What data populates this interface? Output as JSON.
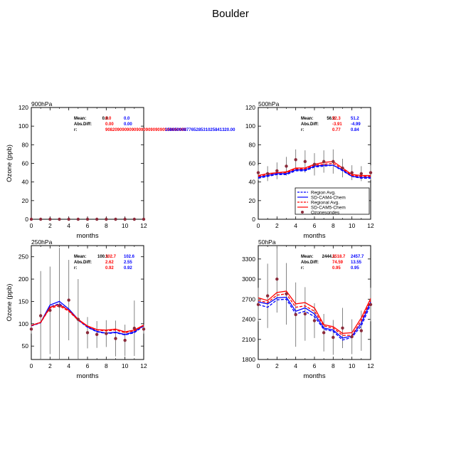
{
  "figure": {
    "title": "Boulder",
    "legend": [
      {
        "label": "Region Avg.",
        "color": "#0000ff",
        "dash": true
      },
      {
        "label": "SD-CAM4-Chem",
        "color": "#0000ff",
        "dash": false
      },
      {
        "label": "Regional Avg.",
        "color": "#ff0000",
        "dash": true
      },
      {
        "label": "SD-CAM5-Chem",
        "color": "#ff0000",
        "dash": false
      },
      {
        "label": "Ozonesondes",
        "color": "#8b2a3a",
        "marker": true
      }
    ],
    "colors": {
      "obs": "#8b2a3a",
      "cam4": "#0000ff",
      "cam5": "#ff0000",
      "errbar": "#777777"
    }
  },
  "chart_data": [
    {
      "type": "line",
      "level": "900hPa",
      "xlabel": "months",
      "ylabel": "Ozone (ppb)",
      "xlim": [
        0,
        12
      ],
      "xticks": [
        0,
        2,
        4,
        6,
        8,
        10,
        12
      ],
      "ylim": [
        0,
        120
      ],
      "yticks": [
        0,
        20,
        40,
        60,
        80,
        100,
        120
      ],
      "x": [
        0,
        1,
        2,
        3,
        4,
        5,
        6,
        7,
        8,
        9,
        10,
        11,
        12
      ],
      "obs": [
        0,
        0,
        0,
        0,
        0,
        0,
        0,
        0,
        0,
        0,
        0,
        0,
        0
      ],
      "obs_err": [
        0,
        0,
        0,
        0,
        0,
        0,
        0,
        0,
        0,
        0,
        0,
        0,
        0
      ],
      "series": [],
      "stats": {
        "labels": [
          "Mean:",
          "Abs.Diff:",
          "r:"
        ],
        "obs": [
          "0.0"
        ],
        "cam5": [
          "0.0",
          "0.00",
          "9082090909090909090909090909090909"
        ],
        "cam4": [
          "0.0",
          "0.00",
          "158650048776528531025841320.00"
        ]
      },
      "show_legend": false
    },
    {
      "type": "line",
      "level": "500hPa",
      "xlabel": "months",
      "ylabel": "",
      "xlim": [
        0,
        12
      ],
      "xticks": [
        0,
        2,
        4,
        6,
        8,
        10,
        12
      ],
      "ylim": [
        0,
        120
      ],
      "yticks": [
        0,
        20,
        40,
        60,
        80,
        100,
        120
      ],
      "x": [
        0,
        1,
        2,
        3,
        4,
        5,
        6,
        7,
        8,
        9,
        10,
        11,
        12
      ],
      "obs": [
        50,
        49,
        52,
        57,
        64,
        62,
        59,
        62,
        62,
        55,
        50,
        49,
        50
      ],
      "obs_err": [
        8,
        8,
        9,
        10,
        11,
        12,
        12,
        12,
        13,
        10,
        8,
        8,
        8
      ],
      "series": [
        {
          "name": "Region Avg.",
          "model": "cam4",
          "dash": true,
          "values": [
            44,
            46,
            48,
            48,
            52,
            52,
            56,
            57,
            58,
            52,
            46,
            44,
            44
          ]
        },
        {
          "name": "SD-CAM4-Chem",
          "model": "cam4",
          "dash": false,
          "values": [
            45,
            47,
            49,
            49,
            53,
            53,
            57,
            58,
            58,
            53,
            46,
            45,
            45
          ]
        },
        {
          "name": "Regional Avg.",
          "model": "cam5",
          "dash": true,
          "values": [
            46,
            48,
            50,
            50,
            54,
            54,
            58,
            59,
            60,
            54,
            47,
            46,
            46
          ]
        },
        {
          "name": "SD-CAM5-Chem",
          "model": "cam5",
          "dash": false,
          "values": [
            47,
            49,
            50,
            51,
            55,
            55,
            59,
            61,
            62,
            55,
            48,
            47,
            47
          ]
        }
      ],
      "stats": {
        "labels": [
          "Mean:",
          "Abs.Diff:",
          "r:"
        ],
        "obs": [
          "56.2"
        ],
        "cam5": [
          "52.3",
          "-3.91",
          "0.77"
        ],
        "cam4": [
          "51.2",
          "-4.99",
          "0.84"
        ]
      },
      "show_legend": true
    },
    {
      "type": "line",
      "level": "250hPa",
      "xlabel": "months",
      "ylabel": "Ozone (ppb)",
      "xlim": [
        0,
        12
      ],
      "xticks": [
        0,
        2,
        4,
        6,
        8,
        10,
        12
      ],
      "ylim": [
        20,
        275
      ],
      "yticks": [
        50,
        100,
        150,
        200,
        250
      ],
      "x": [
        0,
        1,
        2,
        3,
        4,
        5,
        6,
        7,
        8,
        9,
        10,
        11,
        12
      ],
      "obs": [
        88,
        118,
        130,
        140,
        153,
        110,
        80,
        76,
        78,
        67,
        63,
        90,
        88
      ],
      "obs_err": [
        10,
        100,
        98,
        130,
        90,
        90,
        35,
        30,
        30,
        40,
        35,
        62,
        10
      ],
      "series": [
        {
          "name": "Region Avg.",
          "model": "cam4",
          "dash": true,
          "values": [
            95,
            102,
            138,
            145,
            130,
            108,
            92,
            82,
            78,
            80,
            75,
            80,
            95
          ]
        },
        {
          "name": "SD-CAM4-Chem",
          "model": "cam4",
          "dash": false,
          "values": [
            96,
            103,
            142,
            150,
            133,
            110,
            93,
            83,
            79,
            81,
            76,
            82,
            96
          ]
        },
        {
          "name": "Regional Avg.",
          "model": "cam5",
          "dash": true,
          "values": [
            96,
            103,
            135,
            140,
            128,
            108,
            94,
            86,
            84,
            86,
            80,
            84,
            96
          ]
        },
        {
          "name": "SD-CAM5-Chem",
          "model": "cam5",
          "dash": false,
          "values": [
            96,
            103,
            137,
            143,
            130,
            110,
            95,
            87,
            86,
            88,
            82,
            86,
            97
          ]
        }
      ],
      "stats": {
        "labels": [
          "Mean:",
          "Abs.Diff:",
          "r:"
        ],
        "obs": [
          "100.1"
        ],
        "cam5": [
          "102.7",
          "2.62",
          "0.92"
        ],
        "cam4": [
          "102.6",
          "2.55",
          "0.92"
        ]
      },
      "show_legend": false
    },
    {
      "type": "line",
      "level": "50hPa",
      "xlabel": "months",
      "ylabel": "",
      "xlim": [
        0,
        12
      ],
      "xticks": [
        0,
        2,
        4,
        6,
        8,
        10,
        12
      ],
      "ylim": [
        1800,
        3500
      ],
      "yticks": [
        1800,
        2100,
        2400,
        2700,
        3000,
        3300
      ],
      "x": [
        0,
        1,
        2,
        3,
        4,
        5,
        6,
        7,
        8,
        9,
        10,
        11,
        12
      ],
      "obs": [
        2620,
        2750,
        3000,
        2780,
        2470,
        2480,
        2380,
        2200,
        2130,
        2270,
        2140,
        2230,
        2620
      ],
      "obs_err": [
        250,
        480,
        500,
        460,
        480,
        400,
        260,
        280,
        260,
        300,
        260,
        300,
        250
      ],
      "series": [
        {
          "name": "Region Avg.",
          "model": "cam4",
          "dash": true,
          "values": [
            2620,
            2580,
            2690,
            2700,
            2480,
            2520,
            2440,
            2250,
            2220,
            2090,
            2130,
            2300,
            2620
          ]
        },
        {
          "name": "SD-CAM4-Chem",
          "model": "cam4",
          "dash": false,
          "values": [
            2660,
            2630,
            2720,
            2730,
            2520,
            2570,
            2480,
            2270,
            2240,
            2120,
            2150,
            2340,
            2660
          ]
        },
        {
          "name": "Regional Avg.",
          "model": "cam5",
          "dash": true,
          "values": [
            2680,
            2650,
            2760,
            2780,
            2580,
            2600,
            2520,
            2300,
            2270,
            2160,
            2160,
            2380,
            2680
          ]
        },
        {
          "name": "SD-CAM5-Chem",
          "model": "cam5",
          "dash": false,
          "values": [
            2720,
            2680,
            2800,
            2820,
            2630,
            2650,
            2570,
            2320,
            2290,
            2190,
            2200,
            2420,
            2710
          ]
        }
      ],
      "stats": {
        "labels": [
          "Mean:",
          "Abs.Diff:",
          "r:"
        ],
        "obs": [
          "2444.1"
        ],
        "cam5": [
          "2518.7",
          "74.59",
          "0.95"
        ],
        "cam4": [
          "2457.7",
          "13.55",
          "0.95"
        ]
      },
      "show_legend": false
    }
  ]
}
